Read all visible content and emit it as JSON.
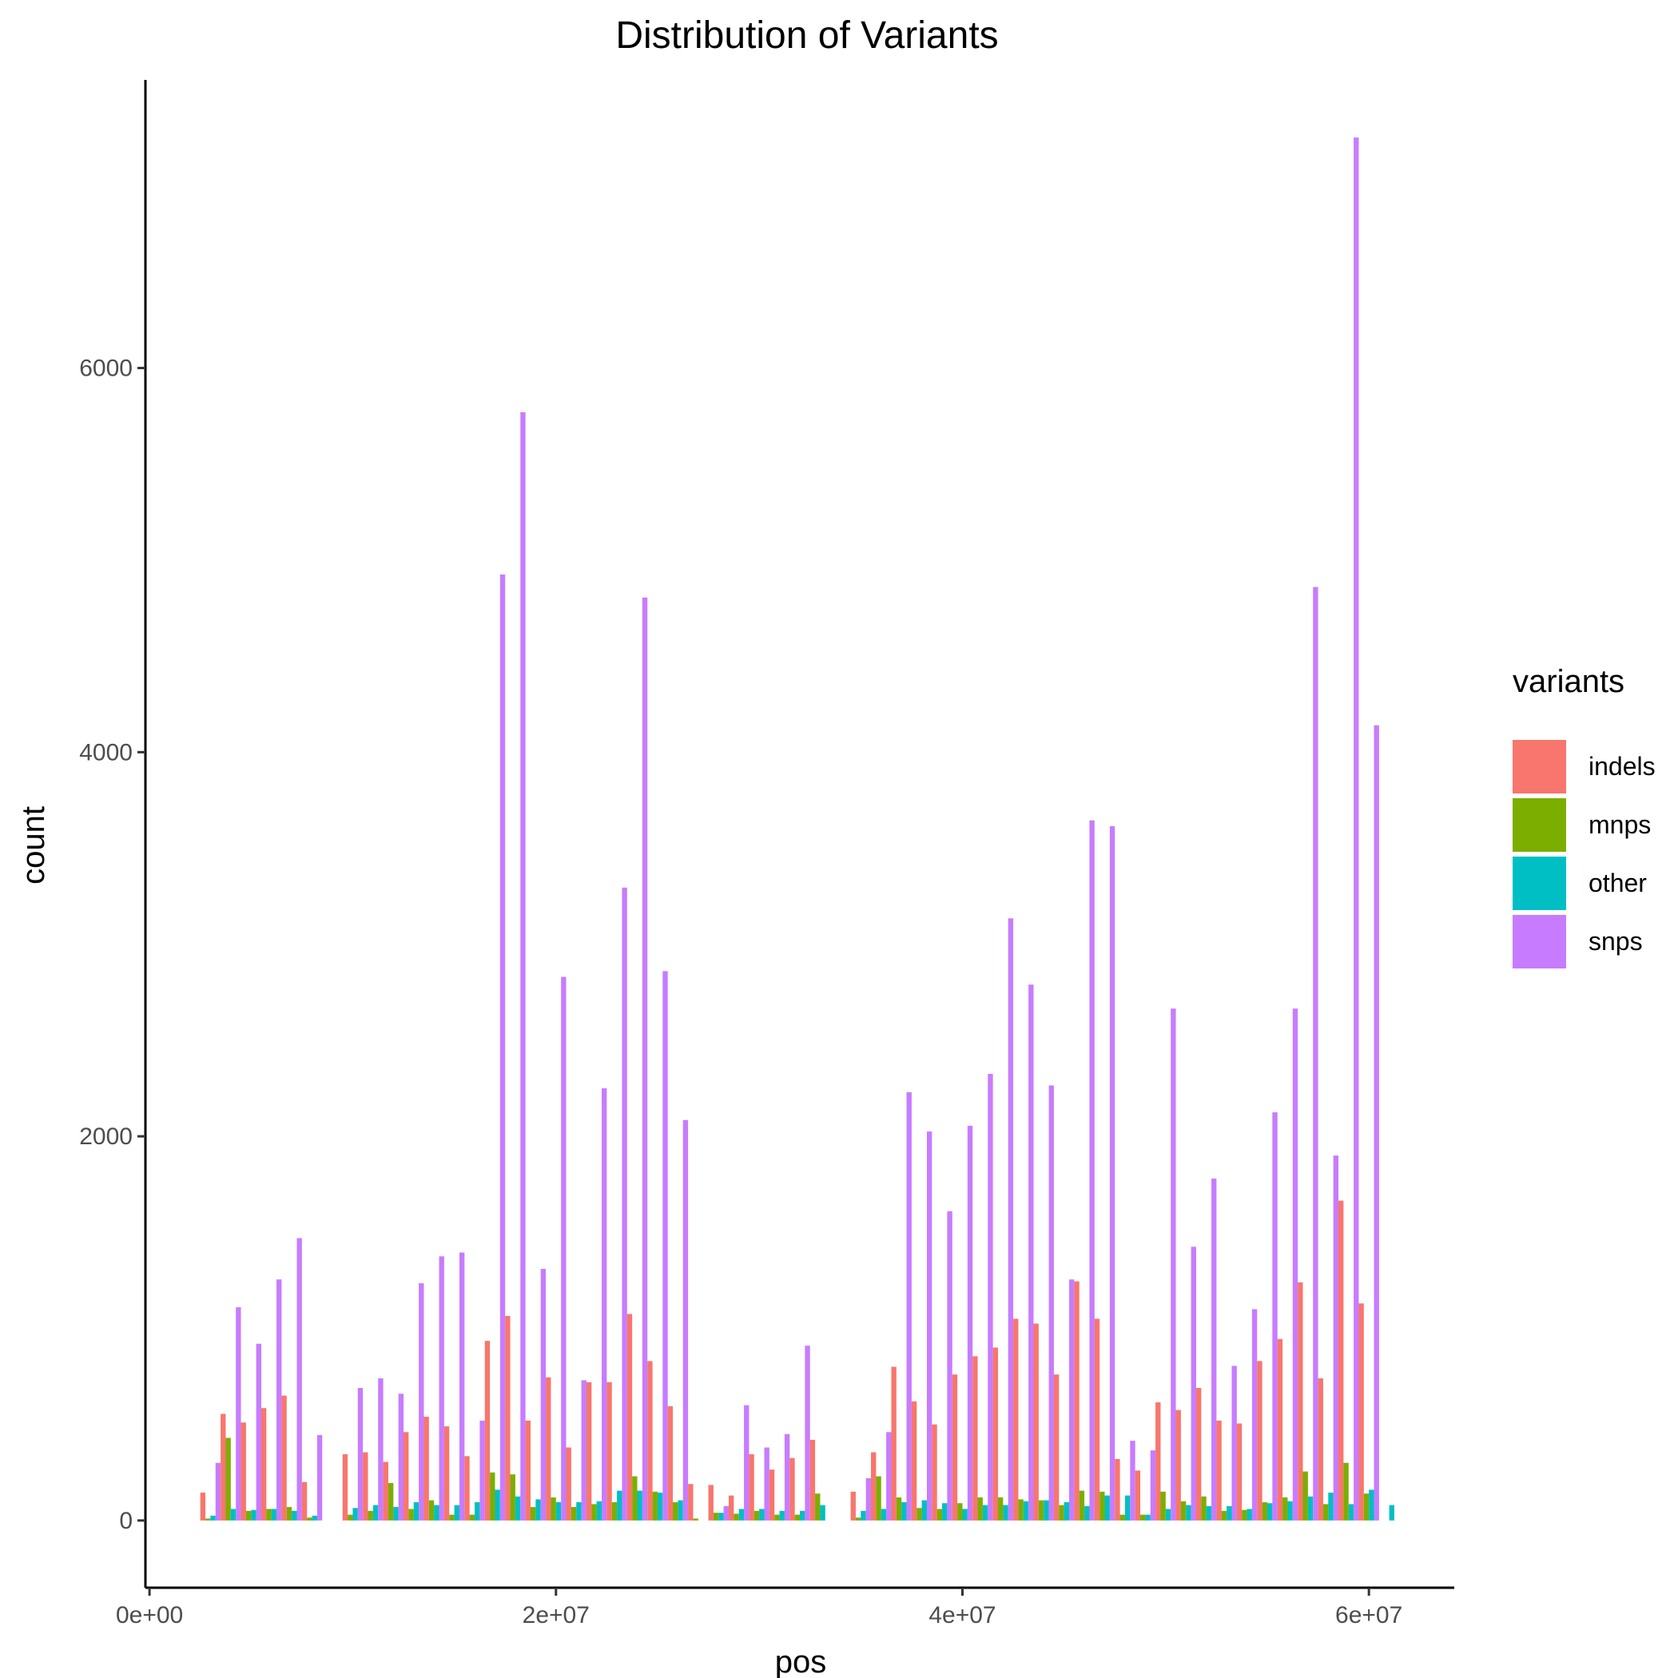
{
  "chart_data": {
    "type": "bar",
    "title": "Distribution of Variants",
    "xlabel": "pos",
    "ylabel": "count",
    "x_ticks": [
      0,
      20000000,
      40000000,
      60000000
    ],
    "x_tick_labels": [
      "0e+00",
      "2e+07",
      "4e+07",
      "6e+07"
    ],
    "y_ticks": [
      0,
      2000,
      4000,
      6000
    ],
    "y_tick_labels": [
      "0",
      "2000",
      "4000",
      "6000"
    ],
    "xlim": [
      -200000,
      64200000
    ],
    "ylim": [
      -350,
      7500
    ],
    "bin_width": 1000000,
    "grid": false,
    "legend": {
      "title": "variants",
      "position": "right"
    },
    "bin_centers": [
      3000000,
      4000000,
      5000000,
      6000000,
      7000000,
      8000000,
      10000000,
      11000000,
      12000000,
      13000000,
      14000000,
      15000000,
      16000000,
      17000000,
      18000000,
      19000000,
      20000000,
      21000000,
      22000000,
      23000000,
      24000000,
      25000000,
      26000000,
      27000000,
      28000000,
      29000000,
      30000000,
      31000000,
      32000000,
      33000000,
      35000000,
      36000000,
      37000000,
      38000000,
      39000000,
      40000000,
      41000000,
      42000000,
      43000000,
      44000000,
      45000000,
      46000000,
      47000000,
      48000000,
      49000000,
      50000000,
      51000000,
      52000000,
      53000000,
      54000000,
      55000000,
      56000000,
      57000000,
      58000000,
      59000000,
      60000000,
      61000000
    ],
    "series": [
      {
        "name": "indels",
        "color": "#F8766D",
        "values": [
          145,
          555,
          510,
          585,
          650,
          200,
          345,
          355,
          305,
          460,
          540,
          490,
          335,
          935,
          1065,
          520,
          745,
          380,
          720,
          720,
          1075,
          830,
          595,
          190,
          185,
          130,
          345,
          265,
          325,
          420,
          150,
          355,
          800,
          620,
          500,
          760,
          855,
          900,
          1050,
          1025,
          760,
          1245,
          1050,
          320,
          260,
          615,
          575,
          690,
          520,
          505,
          830,
          945,
          1240,
          740,
          1665,
          1130,
          0
        ]
      },
      {
        "name": "mnps",
        "color": "#7CAE00",
        "values": [
          10,
          430,
          50,
          60,
          70,
          15,
          30,
          50,
          195,
          60,
          105,
          30,
          30,
          250,
          240,
          70,
          120,
          70,
          85,
          95,
          230,
          150,
          95,
          10,
          40,
          35,
          50,
          30,
          30,
          140,
          15,
          230,
          120,
          65,
          60,
          90,
          120,
          120,
          110,
          105,
          80,
          155,
          150,
          30,
          30,
          150,
          100,
          125,
          50,
          55,
          95,
          120,
          255,
          85,
          300,
          140,
          0
        ]
      },
      {
        "name": "other",
        "color": "#00BFC4",
        "values": [
          25,
          60,
          55,
          60,
          50,
          25,
          65,
          80,
          70,
          95,
          80,
          80,
          95,
          160,
          125,
          110,
          95,
          95,
          100,
          155,
          155,
          145,
          105,
          0,
          40,
          60,
          60,
          50,
          50,
          80,
          50,
          60,
          95,
          105,
          90,
          60,
          80,
          80,
          100,
          105,
          95,
          75,
          130,
          130,
          30,
          60,
          80,
          75,
          75,
          60,
          90,
          100,
          125,
          145,
          85,
          160,
          80
        ]
      },
      {
        "name": "snps",
        "color": "#C77CFF",
        "values": [
          300,
          1110,
          920,
          1255,
          1470,
          445,
          690,
          740,
          660,
          1235,
          1375,
          1395,
          520,
          4925,
          5770,
          1310,
          2830,
          730,
          2250,
          3295,
          4805,
          2860,
          2085,
          0,
          75,
          600,
          380,
          450,
          910,
          0,
          220,
          460,
          2230,
          2025,
          1610,
          2055,
          2325,
          3135,
          2790,
          2265,
          1255,
          3645,
          3615,
          415,
          365,
          2665,
          1425,
          1780,
          805,
          1100,
          2125,
          2665,
          4860,
          1900,
          7200,
          4140,
          0
        ]
      }
    ]
  }
}
